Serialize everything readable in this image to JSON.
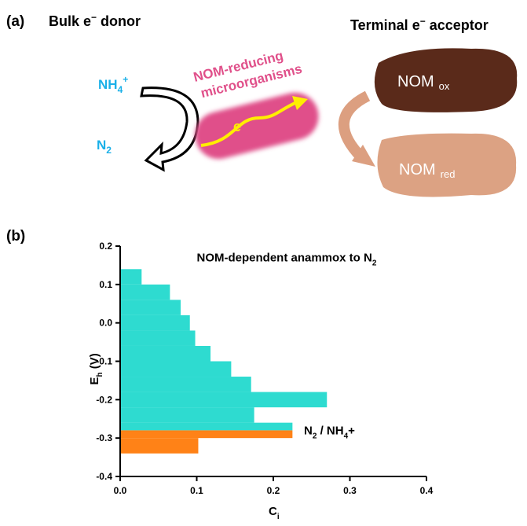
{
  "panel_a": {
    "label": "(a)",
    "donor_title": [
      "Bulk e",
      "−",
      " donor"
    ],
    "acceptor_title": [
      "Terminal e",
      "−",
      " acceptor"
    ],
    "nh4": [
      "NH",
      "4",
      "+"
    ],
    "n2": [
      "N",
      "2"
    ],
    "organism": [
      "NOM-reducing",
      "microorganisms"
    ],
    "electron": "e",
    "nom_ox": [
      "NOM",
      "ox"
    ],
    "nom_red": [
      "NOM",
      "red"
    ]
  },
  "chart_data": {
    "type": "histogram",
    "label": "(b)",
    "orientation": "horizontal",
    "x_label": [
      "C",
      "i"
    ],
    "y_label": [
      "E",
      "h",
      " (V)"
    ],
    "xlim": [
      0,
      0.4
    ],
    "xticks": [
      {
        "value": 0,
        "label": "0.0"
      },
      0.1,
      0.2,
      0.3,
      0.4
    ],
    "ylim": [
      -0.4,
      0.2
    ],
    "yticks": [
      0.2,
      0.1,
      {
        "value": 0,
        "label": "0.0"
      },
      -0.1,
      -0.2,
      -0.3,
      -0.4
    ],
    "series": [
      {
        "color": "#2edbd0",
        "bins": [
          0.14,
          0.1,
          0.06,
          0.02,
          -0.02,
          -0.06,
          -0.1,
          -0.14,
          -0.18,
          -0.22,
          -0.26,
          -0.28
        ],
        "values": [
          0.028,
          0.065,
          0.079,
          0.091,
          0.098,
          0.118,
          0.145,
          0.171,
          0.27,
          0.175,
          0.225
        ]
      },
      {
        "color": "#ff8217",
        "bins": [
          -0.28,
          -0.3,
          -0.34
        ],
        "values": [
          0.225,
          0.102
        ]
      }
    ],
    "annotations": [
      {
        "parts": [
          "NOM-dependent anammox to N",
          "2"
        ],
        "x": 0.1,
        "y": 0.16
      },
      {
        "parts": [
          "N",
          "2",
          " / NH",
          "4",
          "+"
        ],
        "x": 0.24,
        "y": -0.29
      }
    ]
  }
}
